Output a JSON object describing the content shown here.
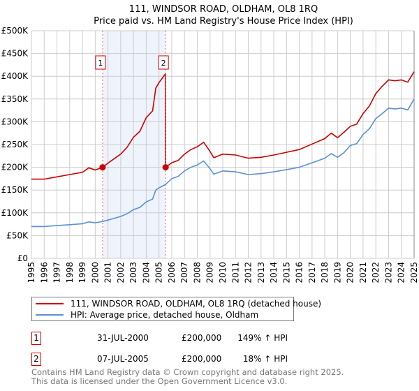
{
  "colors": {
    "property": "#cc0000",
    "hpi": "#5b8fd6",
    "shade": "#eef3fc",
    "grid": "#cccccc"
  },
  "chart_data": {
    "type": "line",
    "title": "111, WINDSOR ROAD, OLDHAM, OL8 1RQ",
    "subtitle": "Price paid vs. HM Land Registry's House Price Index (HPI)",
    "xlim": [
      1995,
      2025
    ],
    "ylim": [
      0,
      500000
    ],
    "grid": true,
    "x_ticks": [
      "1995",
      "1996",
      "1997",
      "1998",
      "1999",
      "2000",
      "2001",
      "2002",
      "2003",
      "2004",
      "2005",
      "2006",
      "2007",
      "2008",
      "2009",
      "2010",
      "2011",
      "2012",
      "2013",
      "2014",
      "2015",
      "2016",
      "2017",
      "2018",
      "2019",
      "2020",
      "2021",
      "2022",
      "2023",
      "2024",
      "2025"
    ],
    "y_ticks": [
      {
        "v": 0,
        "label": "£0"
      },
      {
        "v": 50000,
        "label": "£50K"
      },
      {
        "v": 100000,
        "label": "£100K"
      },
      {
        "v": 150000,
        "label": "£150K"
      },
      {
        "v": 200000,
        "label": "£200K"
      },
      {
        "v": 250000,
        "label": "£250K"
      },
      {
        "v": 300000,
        "label": "£300K"
      },
      {
        "v": 350000,
        "label": "£350K"
      },
      {
        "v": 400000,
        "label": "£400K"
      },
      {
        "v": 450000,
        "label": "£450K"
      },
      {
        "v": 500000,
        "label": "£500K"
      }
    ],
    "series": [
      {
        "name": "111, WINDSOR ROAD, OLDHAM, OL8 1RQ (detached house)",
        "color": "#cc0000",
        "x": [
          1995,
          1996,
          1997,
          1998,
          1999,
          1999.5,
          2000,
          2000.58,
          2001,
          2001.5,
          2002,
          2002.5,
          2003,
          2003.5,
          2004,
          2004.5,
          2004.75,
          2005,
          2005.5,
          2005.52,
          2006,
          2006.5,
          2007,
          2007.5,
          2008,
          2008.5,
          2009,
          2009.3,
          2010,
          2011,
          2012,
          2013,
          2014,
          2015,
          2016,
          2017,
          2018,
          2018.5,
          2019,
          2019.5,
          2020,
          2020.5,
          2021,
          2021.5,
          2022,
          2022.5,
          2023,
          2023.5,
          2024,
          2024.5,
          2025
        ],
        "y": [
          174000,
          174000,
          179000,
          184000,
          189000,
          199000,
          194000,
          200000,
          209000,
          219000,
          229000,
          244000,
          266000,
          279000,
          309000,
          324000,
          374000,
          386000,
          405000,
          200000,
          210000,
          215000,
          229000,
          239000,
          245000,
          255000,
          235000,
          221000,
          229000,
          227000,
          220000,
          222000,
          227000,
          233000,
          239000,
          251000,
          263000,
          275000,
          265000,
          277000,
          290000,
          295000,
          318000,
          335000,
          362000,
          378000,
          392000,
          390000,
          392000,
          387000,
          410000
        ]
      },
      {
        "name": "HPI: Average price, detached house, Oldham",
        "color": "#5b8fd6",
        "x": [
          1995,
          1996,
          1997,
          1998,
          1999,
          1999.5,
          2000,
          2000.58,
          2001,
          2001.5,
          2002,
          2002.5,
          2003,
          2003.5,
          2004,
          2004.5,
          2004.75,
          2005,
          2005.5,
          2006,
          2006.5,
          2007,
          2007.5,
          2008,
          2008.5,
          2009,
          2009.3,
          2010,
          2011,
          2012,
          2013,
          2014,
          2015,
          2016,
          2017,
          2018,
          2018.5,
          2019,
          2019.5,
          2020,
          2020.5,
          2021,
          2021.5,
          2022,
          2022.5,
          2023,
          2023.5,
          2024,
          2024.5,
          2025
        ],
        "y": [
          70000,
          70000,
          72000,
          74000,
          76000,
          80000,
          78000,
          81000,
          84000,
          88000,
          92000,
          98000,
          107000,
          112000,
          124000,
          130000,
          150000,
          155000,
          162000,
          175000,
          180000,
          192000,
          200000,
          205000,
          214000,
          197000,
          185000,
          192000,
          190000,
          184000,
          186000,
          190000,
          195000,
          200000,
          210000,
          220000,
          230000,
          222000,
          232000,
          248000,
          252000,
          272000,
          285000,
          307000,
          318000,
          330000,
          328000,
          330000,
          326000,
          350000
        ]
      }
    ],
    "sales": [
      {
        "id": "1",
        "x": 2000.58,
        "price": 200000
      },
      {
        "id": "2",
        "x": 2005.52,
        "price": 200000
      }
    ]
  },
  "legend": {
    "property": "111, WINDSOR ROAD, OLDHAM, OL8 1RQ (detached house)",
    "hpi": "HPI: Average price, detached house, Oldham"
  },
  "transactions": [
    {
      "id": "1",
      "date": "31-JUL-2000",
      "price": "£200,000",
      "hpi": "149% ↑ HPI"
    },
    {
      "id": "2",
      "date": "07-JUL-2005",
      "price": "£200,000",
      "hpi": "18% ↑ HPI"
    }
  ],
  "footer": {
    "line1": "Contains HM Land Registry data © Crown copyright and database right 2025.",
    "line2": "This data is licensed under the Open Government Licence v3.0."
  }
}
